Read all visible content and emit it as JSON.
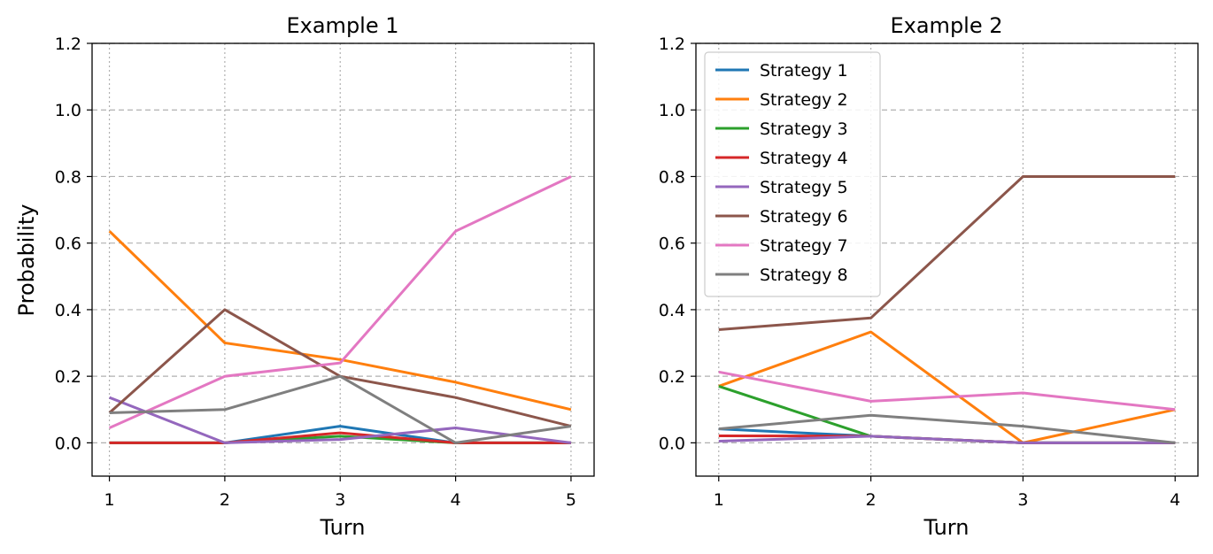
{
  "chart_data": [
    {
      "type": "line",
      "title": "Example 1",
      "xlabel": "Turn",
      "ylabel": "Probability",
      "x": [
        1,
        2,
        3,
        4,
        5
      ],
      "xticks": [
        "1",
        "2",
        "3",
        "4",
        "5"
      ],
      "xlim": [
        0.85,
        5.2
      ],
      "ylim": [
        -0.1,
        1.2
      ],
      "yticks": [
        "0.0",
        "0.2",
        "0.4",
        "0.6",
        "0.8",
        "1.0",
        "1.2"
      ],
      "grid": true,
      "legend": false,
      "series": [
        {
          "color": "#1f77b4",
          "values": [
            0.0,
            0.0,
            0.05,
            0.0,
            0.0
          ]
        },
        {
          "color": "#ff7f0e",
          "values": [
            0.636,
            0.3,
            0.25,
            0.182,
            0.1
          ]
        },
        {
          "color": "#2ca02c",
          "values": [
            0.0,
            0.0,
            0.02,
            0.0,
            0.0
          ]
        },
        {
          "color": "#d62728",
          "values": [
            0.0,
            0.0,
            0.03,
            0.0,
            0.0
          ]
        },
        {
          "color": "#9467bd",
          "values": [
            0.136,
            0.0,
            0.01,
            0.045,
            0.0
          ]
        },
        {
          "color": "#8c564b",
          "values": [
            0.09,
            0.4,
            0.2,
            0.136,
            0.05
          ]
        },
        {
          "color": "#e377c2",
          "values": [
            0.045,
            0.2,
            0.24,
            0.636,
            0.8
          ]
        },
        {
          "color": "#7f7f7f",
          "values": [
            0.09,
            0.1,
            0.2,
            0.0,
            0.05
          ]
        }
      ]
    },
    {
      "type": "line",
      "title": "Example 2",
      "xlabel": "Turn",
      "ylabel": "",
      "x": [
        1,
        2,
        3,
        4
      ],
      "xticks": [
        "1",
        "2",
        "3",
        "4"
      ],
      "xlim": [
        0.85,
        4.15
      ],
      "ylim": [
        -0.1,
        1.2
      ],
      "yticks": [
        "0.0",
        "0.2",
        "0.4",
        "0.6",
        "0.8",
        "1.0",
        "1.2"
      ],
      "grid": true,
      "legend": true,
      "legend_position": "top-left",
      "series": [
        {
          "name": "Strategy 1",
          "color": "#1f77b4",
          "values": [
            0.042,
            0.02,
            0.0,
            0.0
          ]
        },
        {
          "name": "Strategy 2",
          "color": "#ff7f0e",
          "values": [
            0.17,
            0.333,
            0.0,
            0.1
          ]
        },
        {
          "name": "Strategy 3",
          "color": "#2ca02c",
          "values": [
            0.17,
            0.02,
            0.0,
            0.0
          ]
        },
        {
          "name": "Strategy 4",
          "color": "#d62728",
          "values": [
            0.021,
            0.02,
            0.0,
            0.0
          ]
        },
        {
          "name": "Strategy 5",
          "color": "#9467bd",
          "values": [
            0.005,
            0.02,
            0.0,
            0.0
          ]
        },
        {
          "name": "Strategy 6",
          "color": "#8c564b",
          "values": [
            0.34,
            0.375,
            0.8,
            0.8
          ]
        },
        {
          "name": "Strategy 7",
          "color": "#e377c2",
          "values": [
            0.213,
            0.125,
            0.15,
            0.1
          ]
        },
        {
          "name": "Strategy 8",
          "color": "#7f7f7f",
          "values": [
            0.042,
            0.083,
            0.05,
            0.0
          ]
        }
      ]
    }
  ]
}
